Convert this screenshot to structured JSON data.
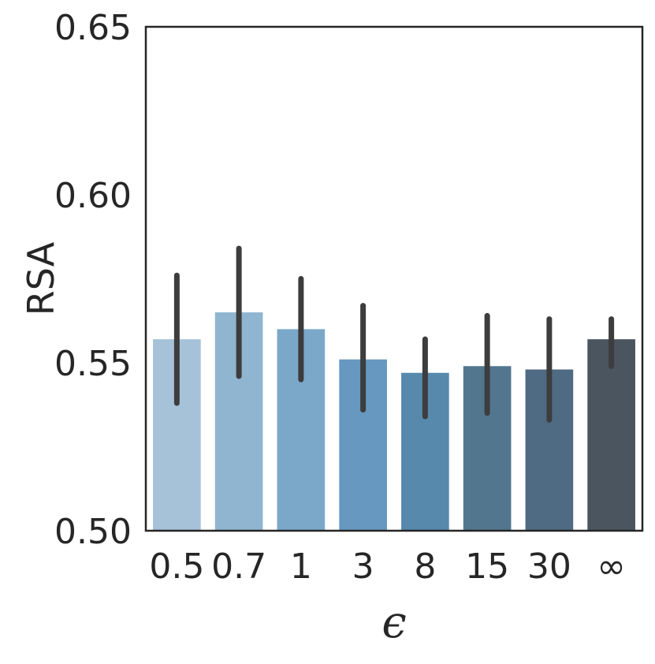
{
  "chart_data": {
    "type": "bar",
    "title": "",
    "xlabel": "ϵ",
    "ylabel": "RSA",
    "ylim": [
      0.5,
      0.65
    ],
    "yticks": [
      "0.50",
      "0.55",
      "0.60",
      "0.65"
    ],
    "grid": false,
    "categories": [
      "0.5",
      "0.7",
      "1",
      "3",
      "8",
      "15",
      "30",
      "∞"
    ],
    "values": [
      0.557,
      0.565,
      0.56,
      0.551,
      0.547,
      0.549,
      0.548,
      0.557
    ],
    "error_low": [
      0.538,
      0.546,
      0.545,
      0.536,
      0.534,
      0.535,
      0.533,
      0.549
    ],
    "error_high": [
      0.576,
      0.584,
      0.575,
      0.567,
      0.557,
      0.564,
      0.563,
      0.563
    ],
    "colors": [
      "#a5c2d9",
      "#90b5d0",
      "#7ba8c9",
      "#6698c0",
      "#5789ad",
      "#53768f",
      "#4f6a83",
      "#4a555f"
    ]
  }
}
